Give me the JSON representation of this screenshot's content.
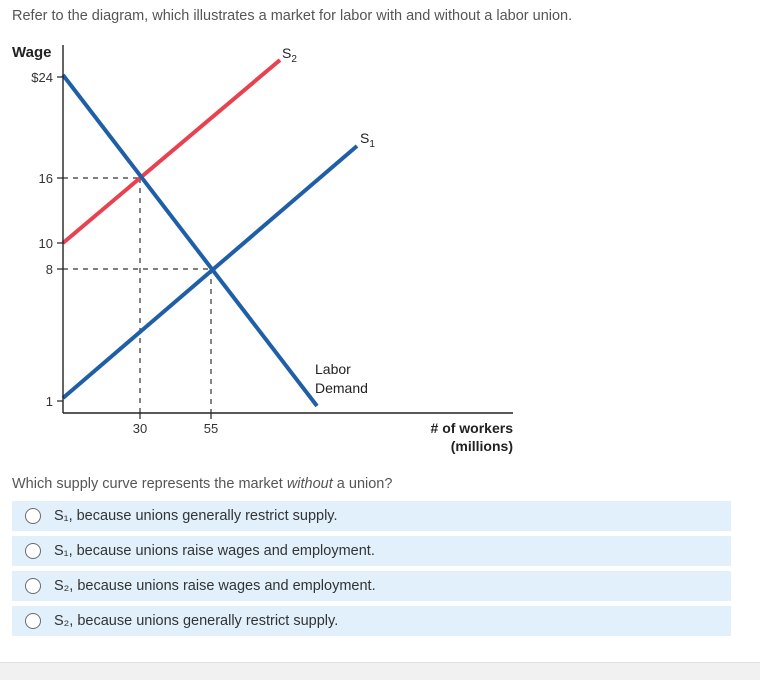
{
  "question": {
    "prompt": "Refer to the diagram, which illustrates a market for labor with and without a labor union.",
    "stem_before": "Which supply curve represents the market ",
    "stem_emphasis": "without",
    "stem_after": " a union?"
  },
  "options": [
    {
      "label": "S₁, because unions generally restrict supply."
    },
    {
      "label": "S₁, because unions raise wages and employment."
    },
    {
      "label": "S₂, because unions raise wages and employment."
    },
    {
      "label": "S₂, because unions generally restrict supply."
    }
  ],
  "colors": {
    "demand": "#1f5fa8",
    "s1": "#1f5fa8",
    "s2": "#e8414f",
    "option_bg": "#e1f0fb"
  },
  "icons": {
    "radio": "radio-unselected-icon"
  },
  "chart_data": {
    "type": "line",
    "ylabel": "Wage",
    "xlabel_line1": "# of workers",
    "xlabel_line2": "(millions)",
    "y_ticks": [
      "$24",
      "16",
      "10",
      "8",
      "1"
    ],
    "x_ticks": [
      "30",
      "55"
    ],
    "series": [
      {
        "name": "Labor Demand",
        "name_line1": "Labor",
        "name_line2": "Demand",
        "points": [
          [
            0,
            24
          ],
          [
            90,
            -1
          ]
        ]
      },
      {
        "name": "S1",
        "label_main": "S",
        "label_sub": "1",
        "points": [
          [
            0,
            1
          ],
          [
            103,
            22
          ]
        ]
      },
      {
        "name": "S2",
        "label_main": "S",
        "label_sub": "2",
        "points": [
          [
            0,
            10
          ],
          [
            77,
            27
          ]
        ]
      }
    ],
    "equilibria": [
      {
        "x": 30,
        "y": 16
      },
      {
        "x": 55,
        "y": 8
      }
    ]
  }
}
